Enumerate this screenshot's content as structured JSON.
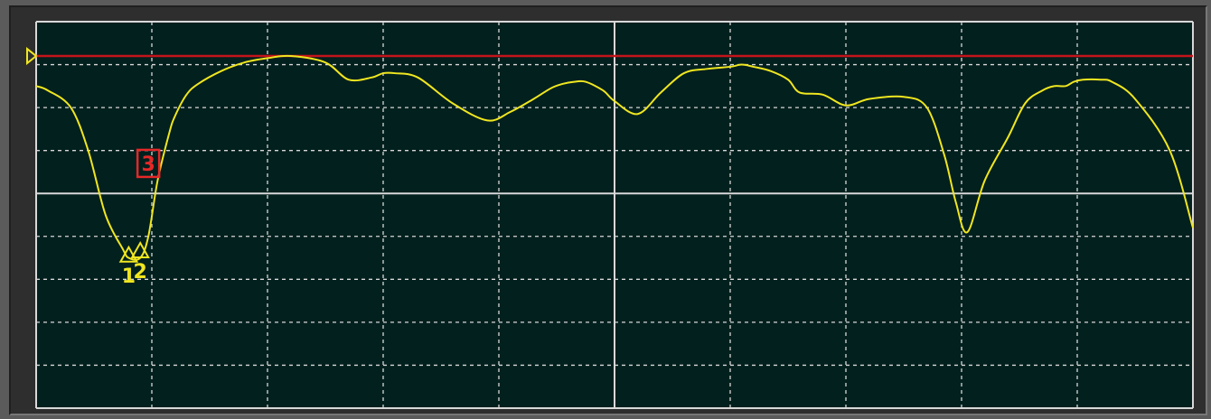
{
  "window": {
    "background": "#5b5b5b",
    "screen_background": "#02201e",
    "grid_color": "#d8d8d8"
  },
  "chart_data": {
    "type": "line",
    "title": "",
    "xlabel": "",
    "ylabel": "",
    "xlim": [
      0,
      10
    ],
    "ylim": [
      -9,
      0
    ],
    "x_divisions": 10,
    "y_divisions": 9,
    "grid": true,
    "reference_line": {
      "y": -0.8,
      "color": "#c4141a"
    },
    "reference_marker": {
      "y": -0.8,
      "color": "#f0e620",
      "icon": "triangle-right-icon"
    },
    "series": [
      {
        "color": "#f0e620",
        "x": [
          0,
          0.1,
          0.3,
          0.45,
          0.6,
          0.75,
          0.8,
          0.9,
          0.97,
          1.05,
          1.15,
          1.2,
          1.3,
          1.4,
          1.6,
          1.8,
          2.0,
          2.2,
          2.5,
          2.7,
          2.9,
          3.0,
          3.1,
          3.3,
          3.6,
          3.9,
          4.1,
          4.3,
          4.45,
          4.55,
          4.65,
          4.75,
          4.9,
          5.0,
          5.2,
          5.4,
          5.6,
          5.8,
          6.0,
          6.1,
          6.2,
          6.35,
          6.5,
          6.6,
          6.8,
          7.0,
          7.2,
          7.5,
          7.7,
          7.85,
          7.95,
          8.05,
          8.2,
          8.4,
          8.55,
          8.7,
          8.8,
          8.9,
          8.97,
          9.05,
          9.2,
          9.3,
          9.5,
          9.8,
          10.0
        ],
        "y": [
          -1.5,
          -1.6,
          -2.0,
          -3.0,
          -4.5,
          -5.3,
          -5.5,
          -5.5,
          -5.0,
          -3.7,
          -2.6,
          -2.2,
          -1.7,
          -1.45,
          -1.15,
          -0.95,
          -0.85,
          -0.8,
          -0.95,
          -1.35,
          -1.3,
          -1.2,
          -1.2,
          -1.3,
          -1.9,
          -2.3,
          -2.1,
          -1.8,
          -1.55,
          -1.45,
          -1.4,
          -1.4,
          -1.6,
          -1.85,
          -2.15,
          -1.65,
          -1.2,
          -1.1,
          -1.05,
          -1.0,
          -1.05,
          -1.15,
          -1.35,
          -1.65,
          -1.7,
          -1.95,
          -1.8,
          -1.75,
          -2.0,
          -3.1,
          -4.2,
          -4.9,
          -3.7,
          -2.7,
          -1.9,
          -1.6,
          -1.5,
          -1.5,
          -1.4,
          -1.35,
          -1.35,
          -1.4,
          -1.8,
          -3.0,
          -4.8
        ]
      }
    ],
    "markers": [
      {
        "label": "1",
        "x": 0.8,
        "y": -5.4,
        "color": "#f0e620"
      },
      {
        "label": "2",
        "x": 0.9,
        "y": -5.3,
        "color": "#f0e620"
      },
      {
        "label": "3",
        "x": 0.97,
        "y": -3.3,
        "color": "#e52828",
        "active": true
      }
    ]
  }
}
